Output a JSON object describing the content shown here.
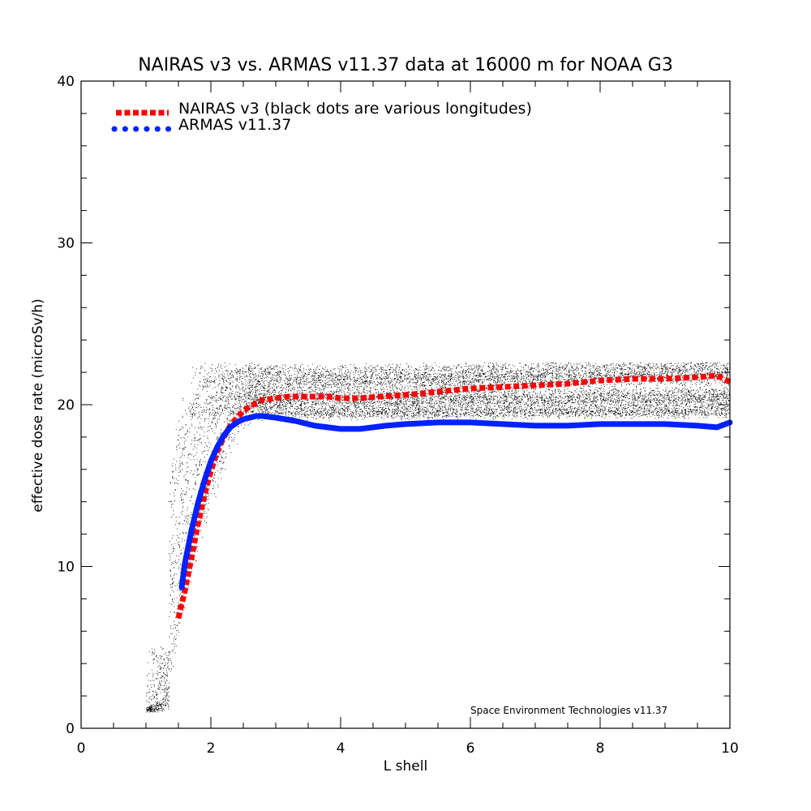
{
  "chart_data": {
    "type": "line",
    "title": "NAIRAS  v3 vs. ARMAS v11.37 data at 16000 m for NOAA G3",
    "xlabel": "L shell",
    "ylabel": "effective dose rate (microSv/h)",
    "xlim": [
      0,
      10
    ],
    "ylim": [
      0,
      40
    ],
    "x_ticks": [
      0,
      2,
      4,
      6,
      8,
      10
    ],
    "y_ticks": [
      0,
      10,
      20,
      30,
      40
    ],
    "legend_position": "top-left",
    "credit": "Space Environment Technologies v11.37",
    "series": [
      {
        "name": "NAIRAS v3 (black dots are various longitudes)",
        "color": "#ff0000",
        "style": "dotted-thick",
        "x": [
          1.5,
          1.6,
          1.7,
          1.8,
          1.9,
          2.0,
          2.1,
          2.2,
          2.3,
          2.4,
          2.5,
          2.6,
          2.7,
          2.8,
          3.0,
          3.2,
          3.5,
          3.8,
          4.0,
          4.3,
          4.6,
          5.0,
          5.5,
          6.0,
          6.5,
          7.0,
          7.5,
          8.0,
          8.5,
          9.0,
          9.5,
          9.8,
          10.0
        ],
        "y": [
          6.8,
          8.5,
          10.5,
          12.6,
          14.4,
          15.9,
          17.1,
          18.0,
          18.7,
          19.2,
          19.6,
          19.9,
          20.1,
          20.3,
          20.4,
          20.5,
          20.5,
          20.5,
          20.4,
          20.4,
          20.5,
          20.6,
          20.8,
          21.0,
          21.1,
          21.2,
          21.3,
          21.5,
          21.6,
          21.6,
          21.7,
          21.8,
          21.4
        ]
      },
      {
        "name": "ARMAS v11.37",
        "color": "#0022ff",
        "style": "solid-thick",
        "x": [
          1.55,
          1.6,
          1.7,
          1.8,
          1.9,
          2.0,
          2.1,
          2.2,
          2.3,
          2.4,
          2.5,
          2.6,
          2.7,
          2.8,
          3.0,
          3.3,
          3.6,
          4.0,
          4.3,
          4.7,
          5.0,
          5.5,
          6.0,
          6.5,
          7.0,
          7.5,
          8.0,
          8.5,
          9.0,
          9.5,
          9.8,
          10.0
        ],
        "y": [
          8.7,
          10.2,
          12.2,
          13.9,
          15.3,
          16.5,
          17.4,
          18.1,
          18.6,
          18.9,
          19.1,
          19.2,
          19.3,
          19.3,
          19.2,
          19.0,
          18.7,
          18.5,
          18.5,
          18.7,
          18.8,
          18.9,
          18.9,
          18.8,
          18.7,
          18.7,
          18.8,
          18.8,
          18.8,
          18.7,
          18.6,
          18.9
        ]
      }
    ]
  }
}
